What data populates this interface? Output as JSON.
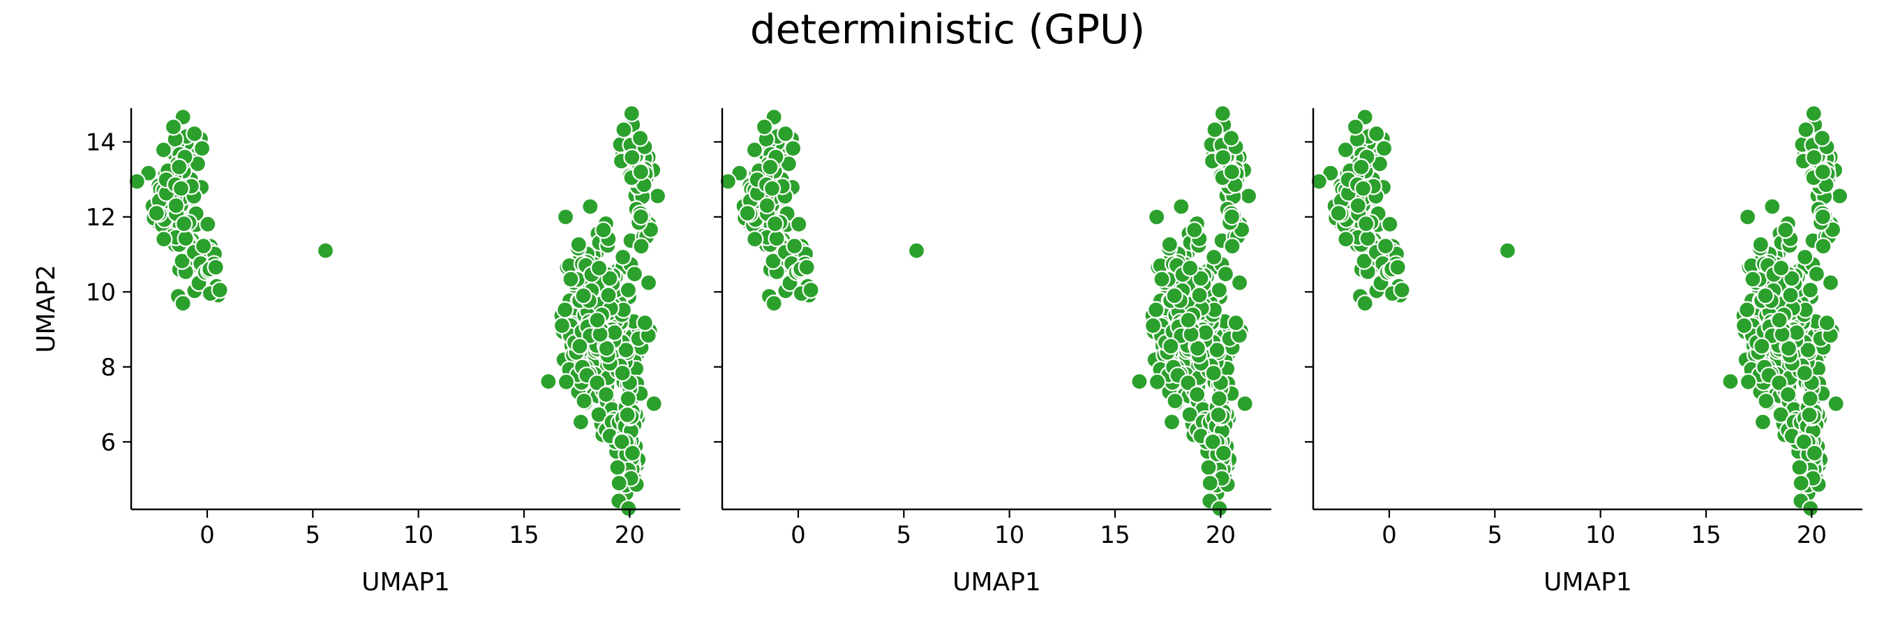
{
  "figure": {
    "title": "deterministic (GPU)"
  },
  "style": {
    "point_color": "#2ca02c",
    "point_edge_color": "#ffffff",
    "axis_color": "#000000"
  },
  "chart_data": [
    {
      "type": "scatter",
      "title": "",
      "xlabel": "UMAP1",
      "ylabel": "UMAP2",
      "xlim": [
        -3.6,
        22.4
      ],
      "ylim": [
        4.2,
        14.9
      ],
      "xticks": [
        0,
        5,
        10,
        15,
        20
      ],
      "yticks": [
        6,
        8,
        10,
        12,
        14
      ],
      "grid": false,
      "legend": "none",
      "series": [
        {
          "clusters": [
            {
              "x": -1.4,
              "y": 12.6,
              "sx": 0.55,
              "sy": 0.95,
              "n": 130
            },
            {
              "x": -0.1,
              "y": 10.9,
              "sx": 0.25,
              "sy": 0.35,
              "n": 16
            },
            {
              "x": 0.3,
              "y": 10.3,
              "sx": 0.15,
              "sy": 0.2,
              "n": 6
            },
            {
              "x": 18.6,
              "y": 9.0,
              "sx": 0.85,
              "sy": 1.1,
              "n": 330
            },
            {
              "x": 19.9,
              "y": 6.2,
              "sx": 0.35,
              "sy": 0.8,
              "n": 70
            },
            {
              "x": 20.3,
              "y": 13.5,
              "sx": 0.35,
              "sy": 0.45,
              "n": 60
            },
            {
              "x": 20.6,
              "y": 11.7,
              "sx": 0.15,
              "sy": 0.35,
              "n": 12
            }
          ],
          "points": [
            {
              "x": 5.6,
              "y": 11.1
            },
            {
              "x": 0.6,
              "y": 10.05
            },
            {
              "x": -2.4,
              "y": 12.1
            },
            {
              "x": -1.6,
              "y": 14.4
            },
            {
              "x": 20.5,
              "y": 14.1
            },
            {
              "x": 19.5,
              "y": 4.9
            },
            {
              "x": 16.8,
              "y": 9.1
            },
            {
              "x": 17.0,
              "y": 7.6
            }
          ]
        }
      ]
    },
    {
      "type": "scatter",
      "title": "",
      "xlabel": "UMAP1",
      "ylabel": "",
      "xlim": [
        -3.6,
        22.4
      ],
      "ylim": [
        4.2,
        14.9
      ],
      "xticks": [
        0,
        5,
        10,
        15,
        20
      ],
      "yticks": [
        6,
        8,
        10,
        12,
        14
      ],
      "show_ytick_labels": false,
      "grid": false,
      "legend": "none",
      "series": [
        {
          "clusters": [
            {
              "x": -1.4,
              "y": 12.6,
              "sx": 0.55,
              "sy": 0.95,
              "n": 130
            },
            {
              "x": -0.1,
              "y": 10.9,
              "sx": 0.25,
              "sy": 0.35,
              "n": 16
            },
            {
              "x": 0.3,
              "y": 10.3,
              "sx": 0.15,
              "sy": 0.2,
              "n": 6
            },
            {
              "x": 18.6,
              "y": 9.0,
              "sx": 0.85,
              "sy": 1.1,
              "n": 330
            },
            {
              "x": 19.9,
              "y": 6.2,
              "sx": 0.35,
              "sy": 0.8,
              "n": 70
            },
            {
              "x": 20.3,
              "y": 13.5,
              "sx": 0.35,
              "sy": 0.45,
              "n": 60
            },
            {
              "x": 20.6,
              "y": 11.7,
              "sx": 0.15,
              "sy": 0.35,
              "n": 12
            }
          ],
          "points": [
            {
              "x": 5.6,
              "y": 11.1
            },
            {
              "x": 0.6,
              "y": 10.05
            },
            {
              "x": -2.4,
              "y": 12.1
            },
            {
              "x": -1.6,
              "y": 14.4
            },
            {
              "x": 20.5,
              "y": 14.1
            },
            {
              "x": 19.5,
              "y": 4.9
            },
            {
              "x": 16.8,
              "y": 9.1
            },
            {
              "x": 17.0,
              "y": 7.6
            }
          ]
        }
      ]
    },
    {
      "type": "scatter",
      "title": "",
      "xlabel": "UMAP1",
      "ylabel": "",
      "xlim": [
        -3.6,
        22.4
      ],
      "ylim": [
        4.2,
        14.9
      ],
      "xticks": [
        0,
        5,
        10,
        15,
        20
      ],
      "yticks": [
        6,
        8,
        10,
        12,
        14
      ],
      "show_ytick_labels": false,
      "grid": false,
      "legend": "none",
      "series": [
        {
          "clusters": [
            {
              "x": -1.4,
              "y": 12.6,
              "sx": 0.55,
              "sy": 0.95,
              "n": 130
            },
            {
              "x": -0.1,
              "y": 10.9,
              "sx": 0.25,
              "sy": 0.35,
              "n": 16
            },
            {
              "x": 0.3,
              "y": 10.3,
              "sx": 0.15,
              "sy": 0.2,
              "n": 6
            },
            {
              "x": 18.6,
              "y": 9.0,
              "sx": 0.85,
              "sy": 1.1,
              "n": 330
            },
            {
              "x": 19.9,
              "y": 6.2,
              "sx": 0.35,
              "sy": 0.8,
              "n": 70
            },
            {
              "x": 20.3,
              "y": 13.5,
              "sx": 0.35,
              "sy": 0.45,
              "n": 60
            },
            {
              "x": 20.6,
              "y": 11.7,
              "sx": 0.15,
              "sy": 0.35,
              "n": 12
            }
          ],
          "points": [
            {
              "x": 5.6,
              "y": 11.1
            },
            {
              "x": 0.6,
              "y": 10.05
            },
            {
              "x": -2.4,
              "y": 12.1
            },
            {
              "x": -1.6,
              "y": 14.4
            },
            {
              "x": 20.5,
              "y": 14.1
            },
            {
              "x": 19.5,
              "y": 4.9
            },
            {
              "x": 16.8,
              "y": 9.1
            },
            {
              "x": 17.0,
              "y": 7.6
            }
          ]
        }
      ]
    }
  ]
}
